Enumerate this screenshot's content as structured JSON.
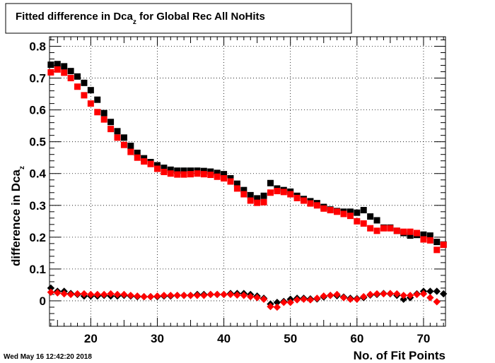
{
  "chart_data": {
    "type": "scatter",
    "title": "Fitted difference in Dca",
    "title_sub": "z",
    "title_suffix": " for Global Rec All NoHits",
    "xlabel": "No. of Fit Points",
    "ylabel": "difference in Dca",
    "ylabel_sub": "z",
    "timestamp": "Wed May 16 12:42:20 2018",
    "xlim": [
      13.8,
      73.3
    ],
    "ylim": [
      -0.08,
      0.83
    ],
    "x_ticks": [
      20,
      30,
      40,
      50,
      60,
      70
    ],
    "y_ticks": [
      0,
      0.1,
      0.2,
      0.3,
      0.4,
      0.5,
      0.6,
      0.7,
      0.8
    ],
    "y_tick_labels": [
      "0",
      "0.1",
      "0.2",
      "0.3",
      "0.4",
      "0.5",
      "0.6",
      "0.7",
      "0.8"
    ],
    "grid": true,
    "x": [
      14,
      15,
      16,
      17,
      18,
      19,
      20,
      21,
      22,
      23,
      24,
      25,
      26,
      27,
      28,
      29,
      30,
      31,
      32,
      33,
      34,
      35,
      36,
      37,
      38,
      39,
      40,
      41,
      42,
      43,
      44,
      45,
      46,
      47,
      48,
      49,
      50,
      51,
      52,
      53,
      54,
      55,
      56,
      57,
      58,
      59,
      60,
      61,
      62,
      63,
      64,
      65,
      66,
      67,
      68,
      69,
      70,
      71,
      72,
      73
    ],
    "series": [
      {
        "marker": "square",
        "color": "#000000",
        "values": [
          0.742,
          0.744,
          0.737,
          0.722,
          0.705,
          0.685,
          0.662,
          0.632,
          0.59,
          0.562,
          0.533,
          0.513,
          0.487,
          0.465,
          0.448,
          0.436,
          0.426,
          0.418,
          0.412,
          0.409,
          0.409,
          0.409,
          0.409,
          0.408,
          0.406,
          0.402,
          0.398,
          0.385,
          0.368,
          0.348,
          0.332,
          0.322,
          0.33,
          0.37,
          0.353,
          0.348,
          0.343,
          0.33,
          0.32,
          0.313,
          0.307,
          0.295,
          0.287,
          0.282,
          0.28,
          0.28,
          0.277,
          0.285,
          0.265,
          0.253,
          0.23,
          0.23,
          0.22,
          0.213,
          0.205,
          0.207,
          0.208,
          0.205,
          0.185,
          0.177
        ]
      },
      {
        "marker": "square",
        "color": "#ff0000",
        "values": [
          0.718,
          0.727,
          0.717,
          0.7,
          0.673,
          0.646,
          0.62,
          0.593,
          0.57,
          0.54,
          0.513,
          0.49,
          0.468,
          0.45,
          0.438,
          0.43,
          0.415,
          0.405,
          0.4,
          0.397,
          0.397,
          0.398,
          0.4,
          0.398,
          0.396,
          0.39,
          0.385,
          0.375,
          0.353,
          0.335,
          0.315,
          0.308,
          0.31,
          0.34,
          0.345,
          0.342,
          0.335,
          0.323,
          0.315,
          0.306,
          0.3,
          0.29,
          0.285,
          0.28,
          0.273,
          0.267,
          0.25,
          0.243,
          0.228,
          0.22,
          0.228,
          0.228,
          0.22,
          0.217,
          0.217,
          0.213,
          0.193,
          0.19,
          0.16,
          0.176
        ]
      },
      {
        "marker": "diamond",
        "color": "#000000",
        "values": [
          0.04,
          0.03,
          0.03,
          0.023,
          0.02,
          0.015,
          0.015,
          0.015,
          0.017,
          0.015,
          0.015,
          0.017,
          0.015,
          0.013,
          0.013,
          0.013,
          0.013,
          0.015,
          0.015,
          0.017,
          0.017,
          0.017,
          0.02,
          0.02,
          0.02,
          0.02,
          0.02,
          0.023,
          0.023,
          0.023,
          0.02,
          0.015,
          0.008,
          -0.01,
          -0.005,
          -0.002,
          0.005,
          0.008,
          0.008,
          0.006,
          0.006,
          0.012,
          0.017,
          0.016,
          0.012,
          0.008,
          0.007,
          0.01,
          0.018,
          0.02,
          0.023,
          0.022,
          0.017,
          0.005,
          0.01,
          0.022,
          0.03,
          0.03,
          0.03,
          0.022
        ]
      },
      {
        "marker": "diamond",
        "color": "#ff0000",
        "values": [
          0.027,
          0.025,
          0.022,
          0.02,
          0.022,
          0.022,
          0.02,
          0.02,
          0.02,
          0.022,
          0.02,
          0.02,
          0.017,
          0.015,
          0.013,
          0.013,
          0.015,
          0.017,
          0.017,
          0.017,
          0.017,
          0.017,
          0.017,
          0.017,
          0.02,
          0.02,
          0.02,
          0.02,
          0.018,
          0.017,
          0.013,
          0.01,
          0.005,
          -0.018,
          -0.02,
          -0.005,
          -0.005,
          0.003,
          0.005,
          0.003,
          0.008,
          0.015,
          0.017,
          0.02,
          0.01,
          0.005,
          0.005,
          0.013,
          0.02,
          0.022,
          0.022,
          0.023,
          0.022,
          0.017,
          0.017,
          0.02,
          0.022,
          0.01,
          -0.003,
          null
        ]
      }
    ]
  }
}
